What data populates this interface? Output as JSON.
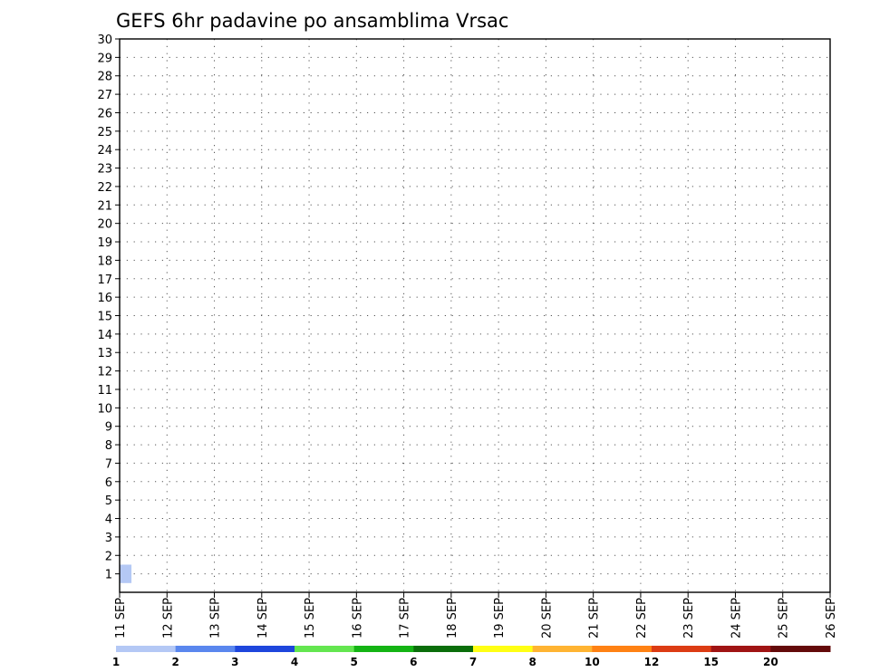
{
  "chart_data": {
    "type": "heatmap",
    "title": "GEFS 6hr padavine po ansamblima Vrsac",
    "xlabel": "",
    "ylabel": "",
    "x_tick_labels": [
      "11 SEP",
      "12 SEP",
      "13 SEP",
      "14 SEP",
      "15 SEP",
      "16 SEP",
      "17 SEP",
      "18 SEP",
      "19 SEP",
      "20 SEP",
      "21 SEP",
      "22 SEP",
      "23 SEP",
      "24 SEP",
      "25 SEP",
      "26 SEP"
    ],
    "y_tick_labels": [
      "1",
      "2",
      "3",
      "4",
      "5",
      "6",
      "7",
      "8",
      "9",
      "10",
      "11",
      "12",
      "13",
      "14",
      "15",
      "16",
      "17",
      "18",
      "19",
      "20",
      "21",
      "22",
      "23",
      "24",
      "25",
      "26",
      "27",
      "28",
      "29",
      "30"
    ],
    "xlim": [
      "11 SEP",
      "26 SEP"
    ],
    "x_step": "6hr",
    "ylim": [
      0,
      30
    ],
    "grid": true,
    "colorbar": {
      "labels": [
        "1",
        "2",
        "3",
        "4",
        "5",
        "6",
        "7",
        "8",
        "10",
        "12",
        "15",
        "20"
      ],
      "colors": [
        "#b4c8f5",
        "#5a87ee",
        "#1e46dc",
        "#64e650",
        "#14b414",
        "#0a6e0a",
        "#ffff14",
        "#ffb432",
        "#ff8214",
        "#dc3c14",
        "#a01414",
        "#640a0a"
      ],
      "thresholds": [
        1,
        2,
        3,
        4,
        5,
        6,
        7,
        8,
        10,
        12,
        15,
        20
      ]
    },
    "cells": [
      {
        "time": "11 SEP 00Z",
        "member": 1,
        "value": 1.5
      }
    ]
  }
}
